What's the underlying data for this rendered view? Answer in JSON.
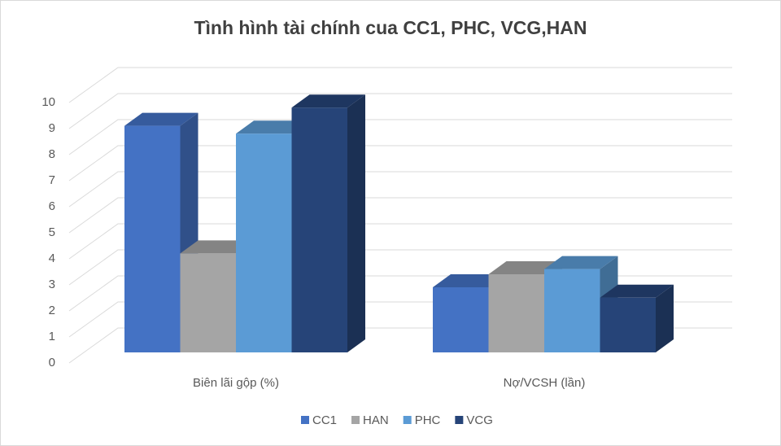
{
  "chart_data": {
    "type": "bar3d",
    "title": "Tình hình tài chính cua CC1, PHC, VCG,HAN",
    "categories": [
      "Biên lãi gộp (%)",
      "Nợ/VCSH (lần)"
    ],
    "series": [
      {
        "name": "CC1",
        "color": "#4472c4",
        "values": [
          8.7,
          2.5
        ]
      },
      {
        "name": "HAN",
        "color": "#a5a5a5",
        "values": [
          3.8,
          3.0
        ]
      },
      {
        "name": "PHC",
        "color": "#5b9bd5",
        "values": [
          8.4,
          3.2
        ]
      },
      {
        "name": "VCG",
        "color": "#264478",
        "values": [
          9.4,
          2.1
        ]
      }
    ],
    "ylim": [
      0,
      10
    ],
    "yticks": [
      0,
      1,
      2,
      3,
      4,
      5,
      6,
      7,
      8,
      9,
      10
    ],
    "grid": true,
    "legend": "bottom"
  }
}
